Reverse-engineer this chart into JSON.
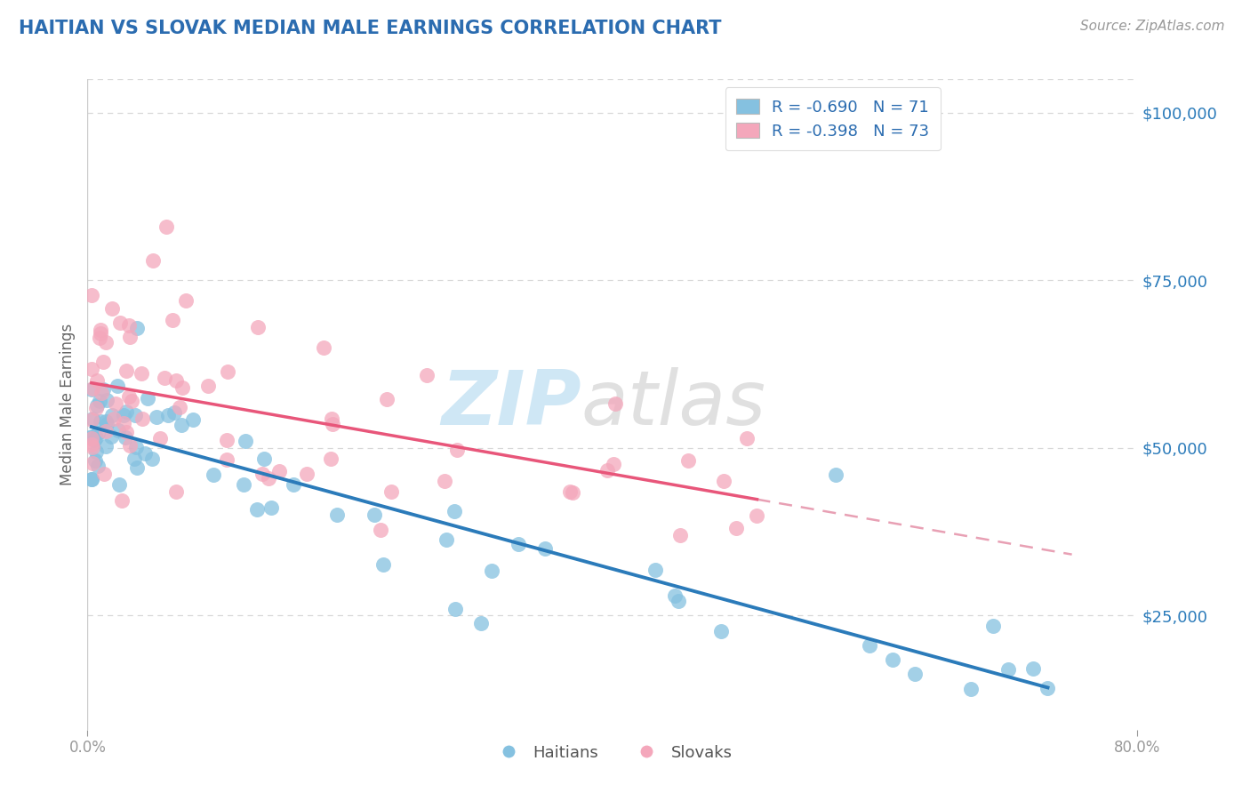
{
  "title": "HAITIAN VS SLOVAK MEDIAN MALE EARNINGS CORRELATION CHART",
  "source_text": "Source: ZipAtlas.com",
  "ylabel": "Median Male Earnings",
  "y_tick_labels": [
    "$25,000",
    "$50,000",
    "$75,000",
    "$100,000"
  ],
  "y_tick_values": [
    25000,
    50000,
    75000,
    100000
  ],
  "xmin": 0.0,
  "xmax": 80.0,
  "ymin": 8000,
  "ymax": 105000,
  "haitians_R": -0.69,
  "haitians_N": 71,
  "slovaks_R": -0.398,
  "slovaks_N": 73,
  "haitians_color": "#85c1e0",
  "slovaks_color": "#f4a7bb",
  "haitians_line_color": "#2b7bba",
  "slovaks_line_color": "#e8567a",
  "slovaks_dash_color": "#e8a0b4",
  "watermark_zip_color": "#a8d4ee",
  "watermark_atlas_color": "#c8c8c8",
  "title_color": "#2b6cb0",
  "legend_r_color": "#2b6cb0",
  "axis_label_color": "#666666",
  "right_tick_color": "#2b7bba",
  "background_color": "#ffffff",
  "plot_bg_color": "#ffffff",
  "grid_color": "#d8d8d8"
}
